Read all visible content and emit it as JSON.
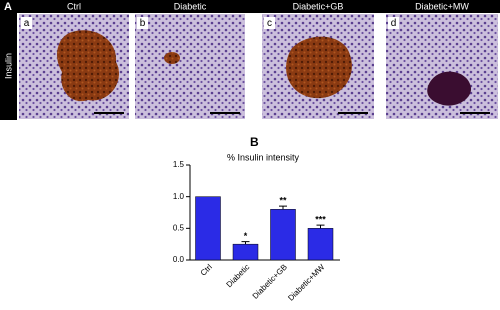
{
  "figure": {
    "label_a": "A",
    "row_label": "Insulin",
    "label_b": "B",
    "panels": [
      {
        "header": "Ctrl",
        "letter": "a"
      },
      {
        "header": "Diabetic",
        "letter": "b"
      },
      {
        "header": "Diabetic+GB",
        "letter": "c"
      },
      {
        "header": "Diabetic+MW",
        "letter": "d"
      }
    ]
  },
  "chart_data": {
    "type": "bar",
    "title": "% Insulin intensity",
    "categories": [
      "Ctrl",
      "Diabetic",
      "Diabetic+GB",
      "Diabetic+MW"
    ],
    "values": [
      1.0,
      0.25,
      0.8,
      0.5
    ],
    "errors": [
      0,
      0.04,
      0.05,
      0.05
    ],
    "annotations": [
      null,
      "*",
      "**",
      "***"
    ],
    "color": "#2b2be6",
    "ylim": [
      0,
      1.5
    ],
    "yticks": [
      {
        "value": 0,
        "label": "0.0"
      },
      {
        "value": 0.5,
        "label": "0.5"
      },
      {
        "value": 1,
        "label": "1.0"
      },
      {
        "value": 1.5,
        "label": "1.5"
      }
    ]
  }
}
